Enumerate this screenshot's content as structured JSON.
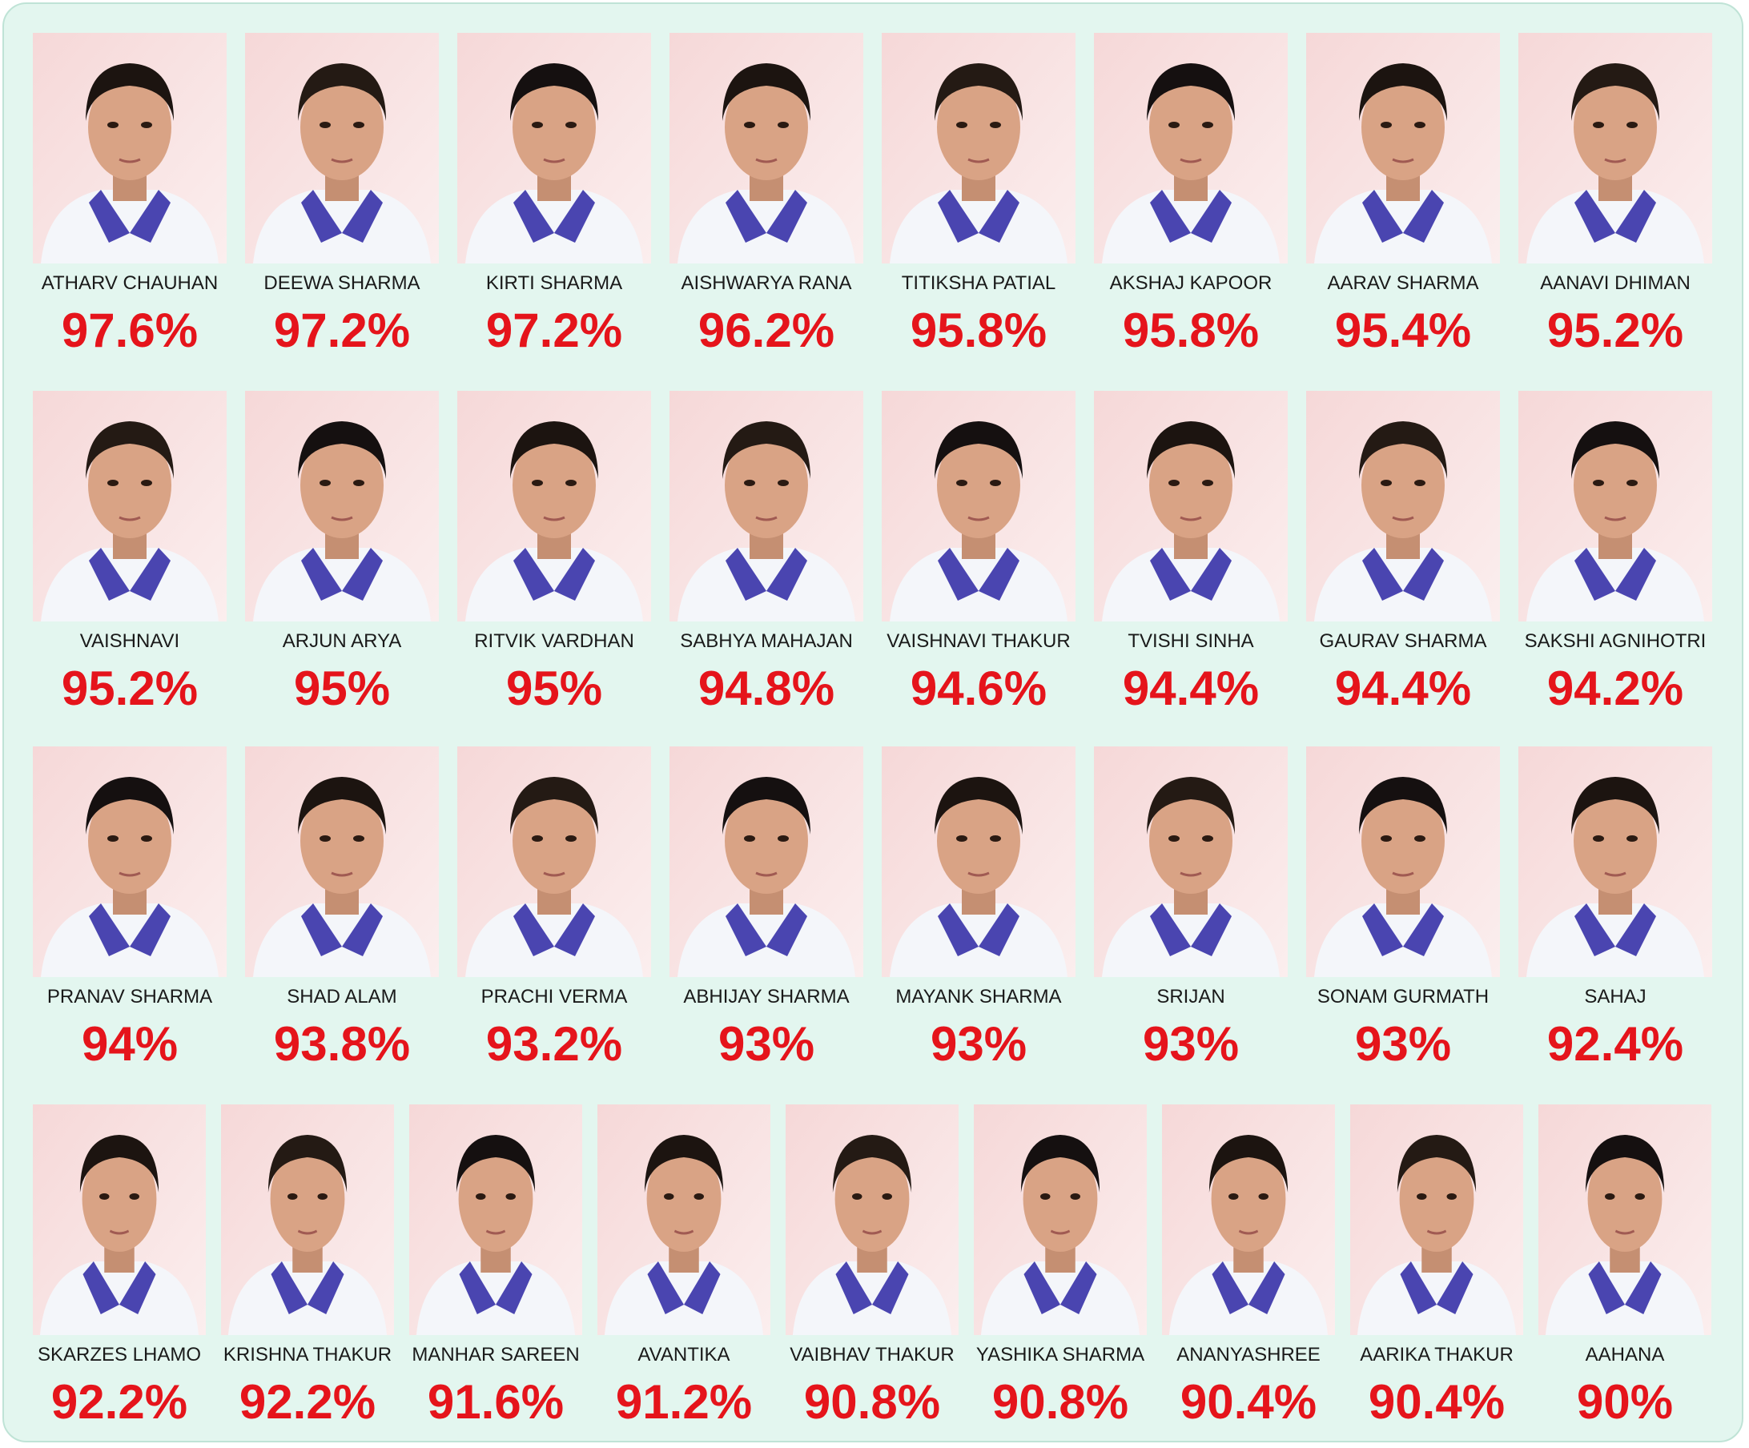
{
  "rows": [
    [
      {
        "name": "ATHARV CHAUHAN",
        "score": "97.6%"
      },
      {
        "name": "DEEWA SHARMA",
        "score": "97.2%"
      },
      {
        "name": "KIRTI SHARMA",
        "score": "97.2%"
      },
      {
        "name": "AISHWARYA RANA",
        "score": "96.2%"
      },
      {
        "name": "TITIKSHA PATIAL",
        "score": "95.8%"
      },
      {
        "name": "AKSHAJ KAPOOR",
        "score": "95.8%"
      },
      {
        "name": "AARAV SHARMA",
        "score": "95.4%"
      },
      {
        "name": "AANAVI DHIMAN",
        "score": "95.2%"
      }
    ],
    [
      {
        "name": "VAISHNAVI",
        "score": "95.2%"
      },
      {
        "name": "ARJUN ARYA",
        "score": "95%"
      },
      {
        "name": "RITVIK VARDHAN",
        "score": "95%"
      },
      {
        "name": "SABHYA MAHAJAN",
        "score": "94.8%"
      },
      {
        "name": "VAISHNAVI THAKUR",
        "score": "94.6%"
      },
      {
        "name": "TVISHI SINHA",
        "score": "94.4%"
      },
      {
        "name": "GAURAV SHARMA",
        "score": "94.4%"
      },
      {
        "name": "SAKSHI AGNIHOTRI",
        "score": "94.2%"
      }
    ],
    [
      {
        "name": "PRANAV SHARMA",
        "score": "94%"
      },
      {
        "name": "SHAD ALAM",
        "score": "93.8%"
      },
      {
        "name": "PRACHI VERMA",
        "score": "93.2%"
      },
      {
        "name": "ABHIJAY SHARMA",
        "score": "93%"
      },
      {
        "name": "MAYANK SHARMA",
        "score": "93%"
      },
      {
        "name": "SRIJAN",
        "score": "93%"
      },
      {
        "name": "SONAM GURMATH",
        "score": "93%"
      },
      {
        "name": "SAHAJ",
        "score": "92.4%"
      }
    ],
    [
      {
        "name": "SKARZES LHAMO",
        "score": "92.2%"
      },
      {
        "name": "KRISHNA THAKUR",
        "score": "92.2%"
      },
      {
        "name": "MANHAR SAREEN",
        "score": "91.6%"
      },
      {
        "name": "AVANTIKA",
        "score": "91.2%"
      },
      {
        "name": "VAIBHAV THAKUR",
        "score": "90.8%"
      },
      {
        "name": "YASHIKA SHARMA",
        "score": "90.8%"
      },
      {
        "name": "ANANYASHREE",
        "score": "90.4%"
      },
      {
        "name": "AARIKA THAKUR",
        "score": "90.4%"
      },
      {
        "name": "AAHANA",
        "score": "90%"
      }
    ]
  ]
}
